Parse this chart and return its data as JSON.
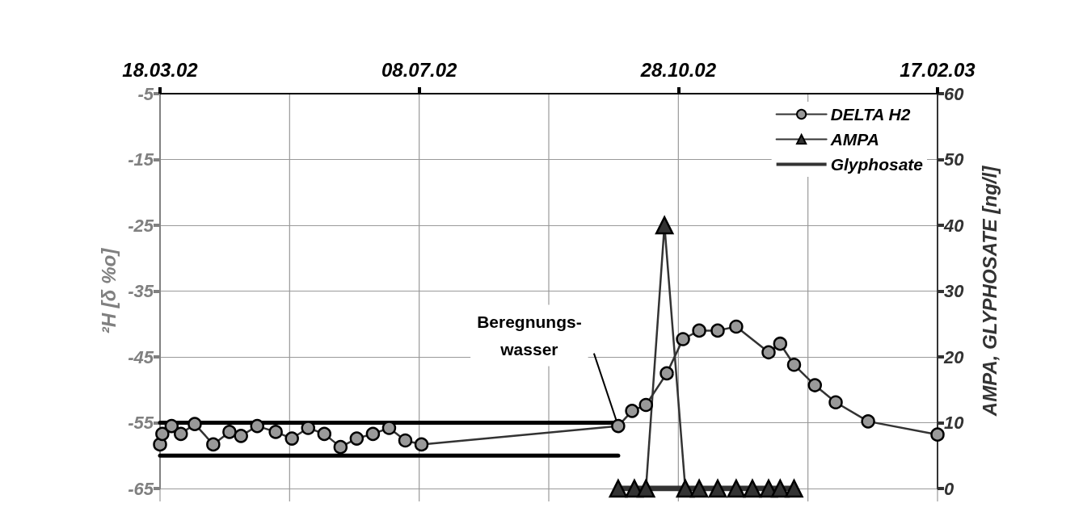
{
  "chart_data": {
    "type": "line",
    "ylabel": "²H [δ %o]",
    "y2label": "AMPA, GLYPHOSATE [ng/l]",
    "xlim": [
      "2002-03-18",
      "2003-02-17"
    ],
    "xticks": [
      {
        "value": "2002-03-18",
        "label": "18.03.02"
      },
      {
        "value": "2002-05-13",
        "label": null
      },
      {
        "value": "2002-07-08",
        "label": "08.07.02"
      },
      {
        "value": "2002-09-02",
        "label": null
      },
      {
        "value": "2002-10-28",
        "label": "28.10.02"
      },
      {
        "value": "2002-12-23",
        "label": null
      },
      {
        "value": "2003-02-17",
        "label": "17.02.03"
      }
    ],
    "ylim": [
      -65,
      -5
    ],
    "yticks": [
      -65,
      -55,
      -45,
      -35,
      -25,
      -15,
      -5
    ],
    "y2lim": [
      0,
      60
    ],
    "y2ticks": [
      0,
      10,
      20,
      30,
      40,
      50,
      60
    ],
    "grid": true,
    "legend": "top right",
    "annotations": [
      {
        "text": "Beregnungs-\nwasser",
        "x": "2002-10-02",
        "y": -55.5
      }
    ],
    "series": [
      {
        "name": "DELTA H2",
        "color": "#999999",
        "marker": "circle",
        "x": [
          "2002-03-18",
          "2002-03-19",
          "2002-03-23",
          "2002-03-27",
          "2002-04-02",
          "2002-04-10",
          "2002-04-17",
          "2002-04-22",
          "2002-04-29",
          "2002-05-07",
          "2002-05-14",
          "2002-05-21",
          "2002-05-28",
          "2002-06-04",
          "2002-06-11",
          "2002-06-18",
          "2002-06-25",
          "2002-07-02",
          "2002-07-09",
          "2002-10-02",
          "2002-10-08",
          "2002-10-14",
          "2002-10-23",
          "2002-10-30",
          "2002-11-06",
          "2002-11-14",
          "2002-11-22",
          "2002-12-06",
          "2002-12-11",
          "2002-12-17",
          "2002-12-26",
          "2003-01-04",
          "2003-01-18",
          "2003-02-17"
        ],
        "values": [
          -58.3,
          -56.7,
          -55.5,
          -56.7,
          -55.2,
          -58.3,
          -56.4,
          -57.0,
          -55.5,
          -56.4,
          -57.4,
          -55.8,
          -56.7,
          -58.7,
          -57.4,
          -56.7,
          -55.8,
          -57.7,
          -58.3,
          -55.5,
          -53.2,
          -52.3,
          -47.5,
          -42.3,
          -41.0,
          -41.0,
          -40.4,
          -44.3,
          -43.0,
          -46.2,
          -49.3,
          -51.9,
          -54.8,
          -56.8
        ]
      },
      {
        "name": "AMPA",
        "color": "#333333",
        "marker": "triangle",
        "axis": "y2",
        "x": [
          "2002-10-02",
          "2002-10-09",
          "2002-10-14",
          "2002-10-22",
          "2002-10-31",
          "2002-11-06",
          "2002-11-14",
          "2002-11-22",
          "2002-11-29",
          "2002-12-06",
          "2002-12-11",
          "2002-12-17"
        ],
        "values": [
          0,
          0,
          0,
          40,
          0,
          0,
          0,
          0,
          0,
          0,
          0,
          0
        ]
      },
      {
        "name": "Glyphosate",
        "color": "#333333",
        "marker": "none",
        "axis": "y2",
        "x": [
          "2002-10-02",
          "2002-12-17"
        ],
        "values": [
          0,
          0
        ]
      },
      {
        "color": "#000000",
        "marker": "none",
        "x": [
          "2002-03-18",
          "2002-10-02"
        ],
        "values": [
          -55,
          -55
        ]
      },
      {
        "color": "#000000",
        "marker": "none",
        "x": [
          "2002-03-18",
          "2002-10-02"
        ],
        "values": [
          -60,
          -60
        ]
      }
    ]
  }
}
